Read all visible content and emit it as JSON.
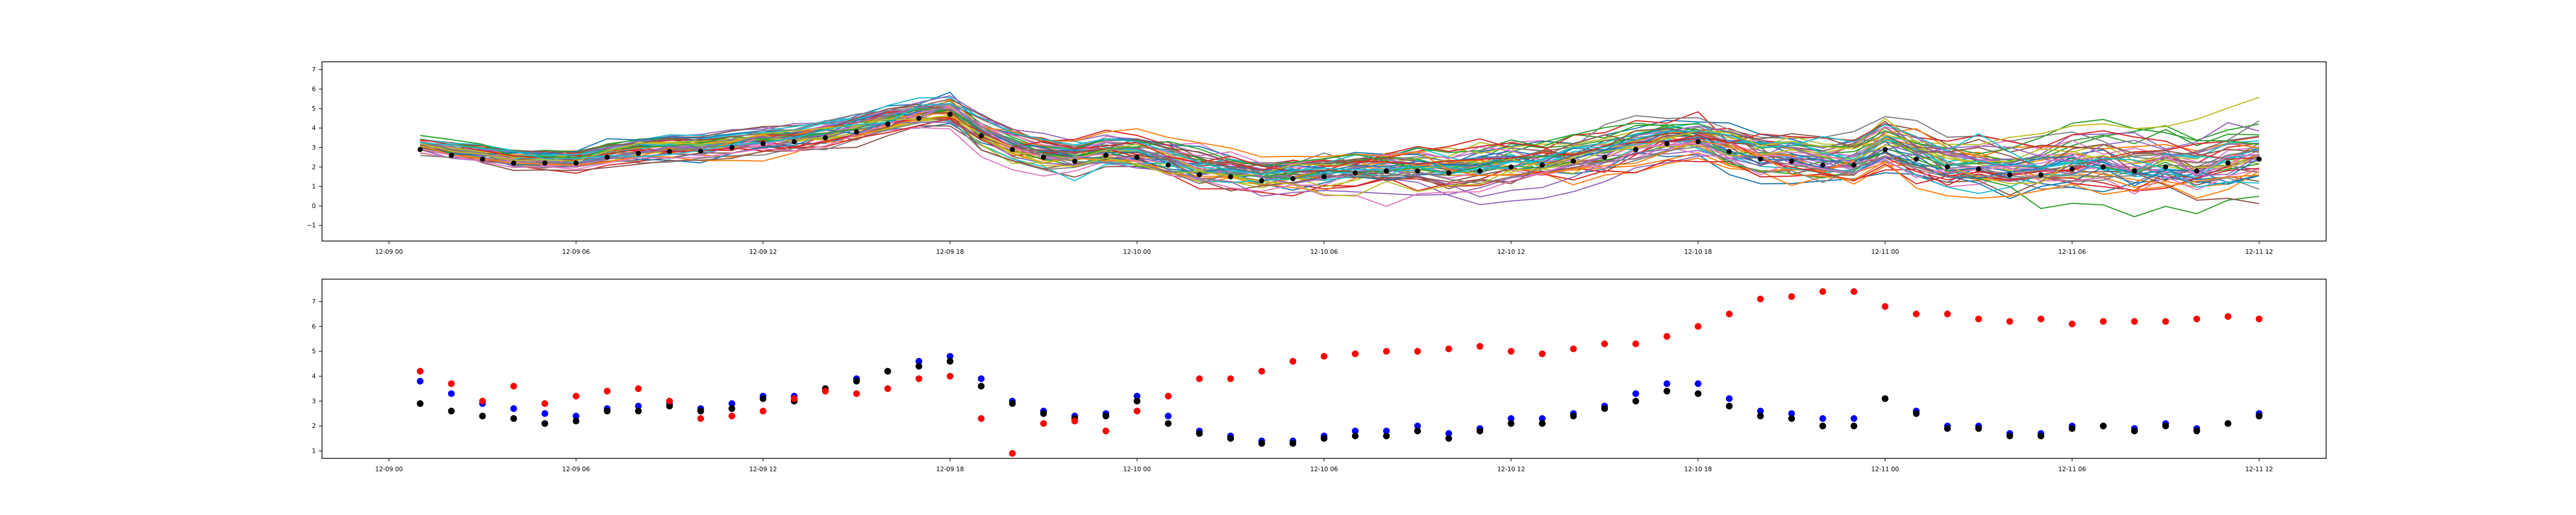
{
  "chart_data": [
    {
      "type": "line",
      "title": "",
      "xlabel": "",
      "ylabel": "",
      "xlim": [
        "2024-12-08T21:51",
        "2024-12-11T14:09"
      ],
      "ylim": [
        -1.8,
        7.4
      ],
      "x_ticks": [
        {
          "value": "2024-12-09T00:00",
          "label": "12-09 00"
        },
        {
          "value": "2024-12-09T06:00",
          "label": "12-09 06"
        },
        {
          "value": "2024-12-09T12:00",
          "label": "12-09 12"
        },
        {
          "value": "2024-12-09T18:00",
          "label": "12-09 18"
        },
        {
          "value": "2024-12-10T00:00",
          "label": "12-10 00"
        },
        {
          "value": "2024-12-10T06:00",
          "label": "12-10 06"
        },
        {
          "value": "2024-12-10T12:00",
          "label": "12-10 12"
        },
        {
          "value": "2024-12-10T18:00",
          "label": "12-10 18"
        },
        {
          "value": "2024-12-11T00:00",
          "label": "12-11 00"
        },
        {
          "value": "2024-12-11T06:00",
          "label": "12-11 06"
        },
        {
          "value": "2024-12-11T12:00",
          "label": "12-11 12"
        }
      ],
      "y_ticks": [
        -1,
        0,
        1,
        2,
        3,
        4,
        5,
        6,
        7
      ],
      "grid": false,
      "legend": "none",
      "ensemble_member_count": 50,
      "ensemble_colors": [
        "#1f77b4",
        "#ff7f0e",
        "#2ca02c",
        "#d62728",
        "#9467bd",
        "#8c564b",
        "#e377c2",
        "#7f7f7f",
        "#bcbd22",
        "#17becf"
      ],
      "observation_color": "#000000",
      "observations": {
        "x": [
          "2024-12-09T01:00",
          "2024-12-09T02:00",
          "2024-12-09T03:00",
          "2024-12-09T04:00",
          "2024-12-09T05:00",
          "2024-12-09T06:00",
          "2024-12-09T07:00",
          "2024-12-09T08:00",
          "2024-12-09T09:00",
          "2024-12-09T10:00",
          "2024-12-09T11:00",
          "2024-12-09T12:00",
          "2024-12-09T13:00",
          "2024-12-09T14:00",
          "2024-12-09T15:00",
          "2024-12-09T16:00",
          "2024-12-09T17:00",
          "2024-12-09T18:00",
          "2024-12-09T19:00",
          "2024-12-09T20:00",
          "2024-12-09T21:00",
          "2024-12-09T22:00",
          "2024-12-09T23:00",
          "2024-12-10T00:00",
          "2024-12-10T01:00",
          "2024-12-10T02:00",
          "2024-12-10T03:00",
          "2024-12-10T04:00",
          "2024-12-10T05:00",
          "2024-12-10T06:00",
          "2024-12-10T07:00",
          "2024-12-10T08:00",
          "2024-12-10T09:00",
          "2024-12-10T10:00",
          "2024-12-10T11:00",
          "2024-12-10T12:00",
          "2024-12-10T13:00",
          "2024-12-10T14:00",
          "2024-12-10T15:00",
          "2024-12-10T16:00",
          "2024-12-10T17:00",
          "2024-12-10T18:00",
          "2024-12-10T19:00",
          "2024-12-10T20:00",
          "2024-12-10T21:00",
          "2024-12-10T22:00",
          "2024-12-10T23:00",
          "2024-12-11T00:00",
          "2024-12-11T01:00",
          "2024-12-11T02:00",
          "2024-12-11T03:00",
          "2024-12-11T04:00",
          "2024-12-11T05:00",
          "2024-12-11T06:00",
          "2024-12-11T07:00",
          "2024-12-11T08:00",
          "2024-12-11T09:00",
          "2024-12-11T10:00",
          "2024-12-11T11:00",
          "2024-12-11T12:00"
        ],
        "y": [
          2.9,
          2.6,
          2.4,
          2.2,
          2.2,
          2.2,
          2.5,
          2.7,
          2.8,
          2.8,
          3.0,
          3.2,
          3.3,
          3.5,
          3.8,
          4.2,
          4.5,
          4.7,
          3.6,
          2.9,
          2.5,
          2.3,
          2.6,
          2.5,
          2.1,
          1.6,
          1.5,
          1.3,
          1.4,
          1.5,
          1.7,
          1.8,
          1.8,
          1.7,
          1.8,
          2.0,
          2.1,
          2.3,
          2.5,
          2.9,
          3.2,
          3.3,
          2.8,
          2.4,
          2.3,
          2.1,
          2.1,
          2.9,
          2.4,
          2.0,
          1.9,
          1.6,
          1.6,
          1.9,
          2.0,
          1.8,
          2.0,
          1.8,
          2.2,
          2.4
        ]
      }
    },
    {
      "type": "scatter",
      "title": "",
      "xlabel": "",
      "ylabel": "",
      "xlim": [
        "2024-12-08T21:51",
        "2024-12-11T14:09"
      ],
      "ylim": [
        0.7,
        7.9
      ],
      "x_ticks": [
        {
          "value": "2024-12-09T00:00",
          "label": "12-09 00"
        },
        {
          "value": "2024-12-09T06:00",
          "label": "12-09 06"
        },
        {
          "value": "2024-12-09T12:00",
          "label": "12-09 12"
        },
        {
          "value": "2024-12-09T18:00",
          "label": "12-09 18"
        },
        {
          "value": "2024-12-10T00:00",
          "label": "12-10 00"
        },
        {
          "value": "2024-12-10T06:00",
          "label": "12-10 06"
        },
        {
          "value": "2024-12-10T12:00",
          "label": "12-10 12"
        },
        {
          "value": "2024-12-10T18:00",
          "label": "12-10 18"
        },
        {
          "value": "2024-12-11T00:00",
          "label": "12-11 00"
        },
        {
          "value": "2024-12-11T06:00",
          "label": "12-11 06"
        },
        {
          "value": "2024-12-11T12:00",
          "label": "12-11 12"
        }
      ],
      "y_ticks": [
        1,
        2,
        3,
        4,
        5,
        6,
        7
      ],
      "grid": false,
      "legend": "none",
      "x": [
        "2024-12-09T01:00",
        "2024-12-09T02:00",
        "2024-12-09T03:00",
        "2024-12-09T04:00",
        "2024-12-09T05:00",
        "2024-12-09T06:00",
        "2024-12-09T07:00",
        "2024-12-09T08:00",
        "2024-12-09T09:00",
        "2024-12-09T10:00",
        "2024-12-09T11:00",
        "2024-12-09T12:00",
        "2024-12-09T13:00",
        "2024-12-09T14:00",
        "2024-12-09T15:00",
        "2024-12-09T16:00",
        "2024-12-09T17:00",
        "2024-12-09T18:00",
        "2024-12-09T19:00",
        "2024-12-09T20:00",
        "2024-12-09T21:00",
        "2024-12-09T22:00",
        "2024-12-09T23:00",
        "2024-12-10T00:00",
        "2024-12-10T01:00",
        "2024-12-10T02:00",
        "2024-12-10T03:00",
        "2024-12-10T04:00",
        "2024-12-10T05:00",
        "2024-12-10T06:00",
        "2024-12-10T07:00",
        "2024-12-10T08:00",
        "2024-12-10T09:00",
        "2024-12-10T10:00",
        "2024-12-10T11:00",
        "2024-12-10T12:00",
        "2024-12-10T13:00",
        "2024-12-10T14:00",
        "2024-12-10T15:00",
        "2024-12-10T16:00",
        "2024-12-10T17:00",
        "2024-12-10T18:00",
        "2024-12-10T19:00",
        "2024-12-10T20:00",
        "2024-12-10T21:00",
        "2024-12-10T22:00",
        "2024-12-10T23:00",
        "2024-12-11T00:00",
        "2024-12-11T01:00",
        "2024-12-11T02:00",
        "2024-12-11T03:00",
        "2024-12-11T04:00",
        "2024-12-11T05:00",
        "2024-12-11T06:00",
        "2024-12-11T07:00",
        "2024-12-11T08:00",
        "2024-12-11T09:00",
        "2024-12-11T10:00",
        "2024-12-11T11:00",
        "2024-12-11T12:00"
      ],
      "series": [
        {
          "color": "#0000ff",
          "values": [
            3.8,
            3.3,
            2.9,
            2.7,
            2.5,
            2.4,
            2.7,
            2.8,
            2.9,
            2.7,
            2.9,
            3.2,
            3.2,
            3.5,
            3.9,
            4.2,
            4.6,
            4.8,
            3.9,
            3.0,
            2.6,
            2.4,
            2.5,
            3.2,
            2.4,
            1.8,
            1.6,
            1.4,
            1.4,
            1.6,
            1.8,
            1.8,
            2.0,
            1.7,
            1.9,
            2.3,
            2.3,
            2.5,
            2.8,
            3.3,
            3.7,
            3.7,
            3.1,
            2.6,
            2.5,
            2.3,
            2.3,
            3.1,
            2.6,
            2.0,
            2.0,
            1.7,
            1.7,
            2.0,
            2.0,
            1.9,
            2.1,
            1.9,
            2.1,
            2.5
          ]
        },
        {
          "color": "#000000",
          "values": [
            2.9,
            2.6,
            2.4,
            2.3,
            2.1,
            2.2,
            2.6,
            2.6,
            2.8,
            2.6,
            2.7,
            3.1,
            3.0,
            3.5,
            3.8,
            4.2,
            4.4,
            4.6,
            3.6,
            2.9,
            2.5,
            2.3,
            2.4,
            3.0,
            2.1,
            1.7,
            1.5,
            1.3,
            1.3,
            1.5,
            1.6,
            1.6,
            1.8,
            1.5,
            1.8,
            2.1,
            2.1,
            2.4,
            2.7,
            3.0,
            3.4,
            3.3,
            2.8,
            2.4,
            2.3,
            2.0,
            2.0,
            3.1,
            2.5,
            1.9,
            1.9,
            1.6,
            1.6,
            1.9,
            2.0,
            1.8,
            2.0,
            1.8,
            2.1,
            2.4
          ]
        },
        {
          "color": "#ff0000",
          "values": [
            4.2,
            3.7,
            3.0,
            3.6,
            2.9,
            3.2,
            3.4,
            3.5,
            3.0,
            2.3,
            2.4,
            2.6,
            3.1,
            3.4,
            3.3,
            3.5,
            3.9,
            4.0,
            2.3,
            0.9,
            2.1,
            2.2,
            1.8,
            2.6,
            3.2,
            3.9,
            3.9,
            4.2,
            4.6,
            4.8,
            4.9,
            5.0,
            5.0,
            5.1,
            5.2,
            5.0,
            4.9,
            5.1,
            5.3,
            5.3,
            5.6,
            6.0,
            6.5,
            7.1,
            7.2,
            7.4,
            7.4,
            6.8,
            6.5,
            6.5,
            6.3,
            6.2,
            6.3,
            6.1,
            6.2,
            6.2,
            6.2,
            6.3,
            6.4,
            6.3
          ]
        }
      ]
    }
  ]
}
